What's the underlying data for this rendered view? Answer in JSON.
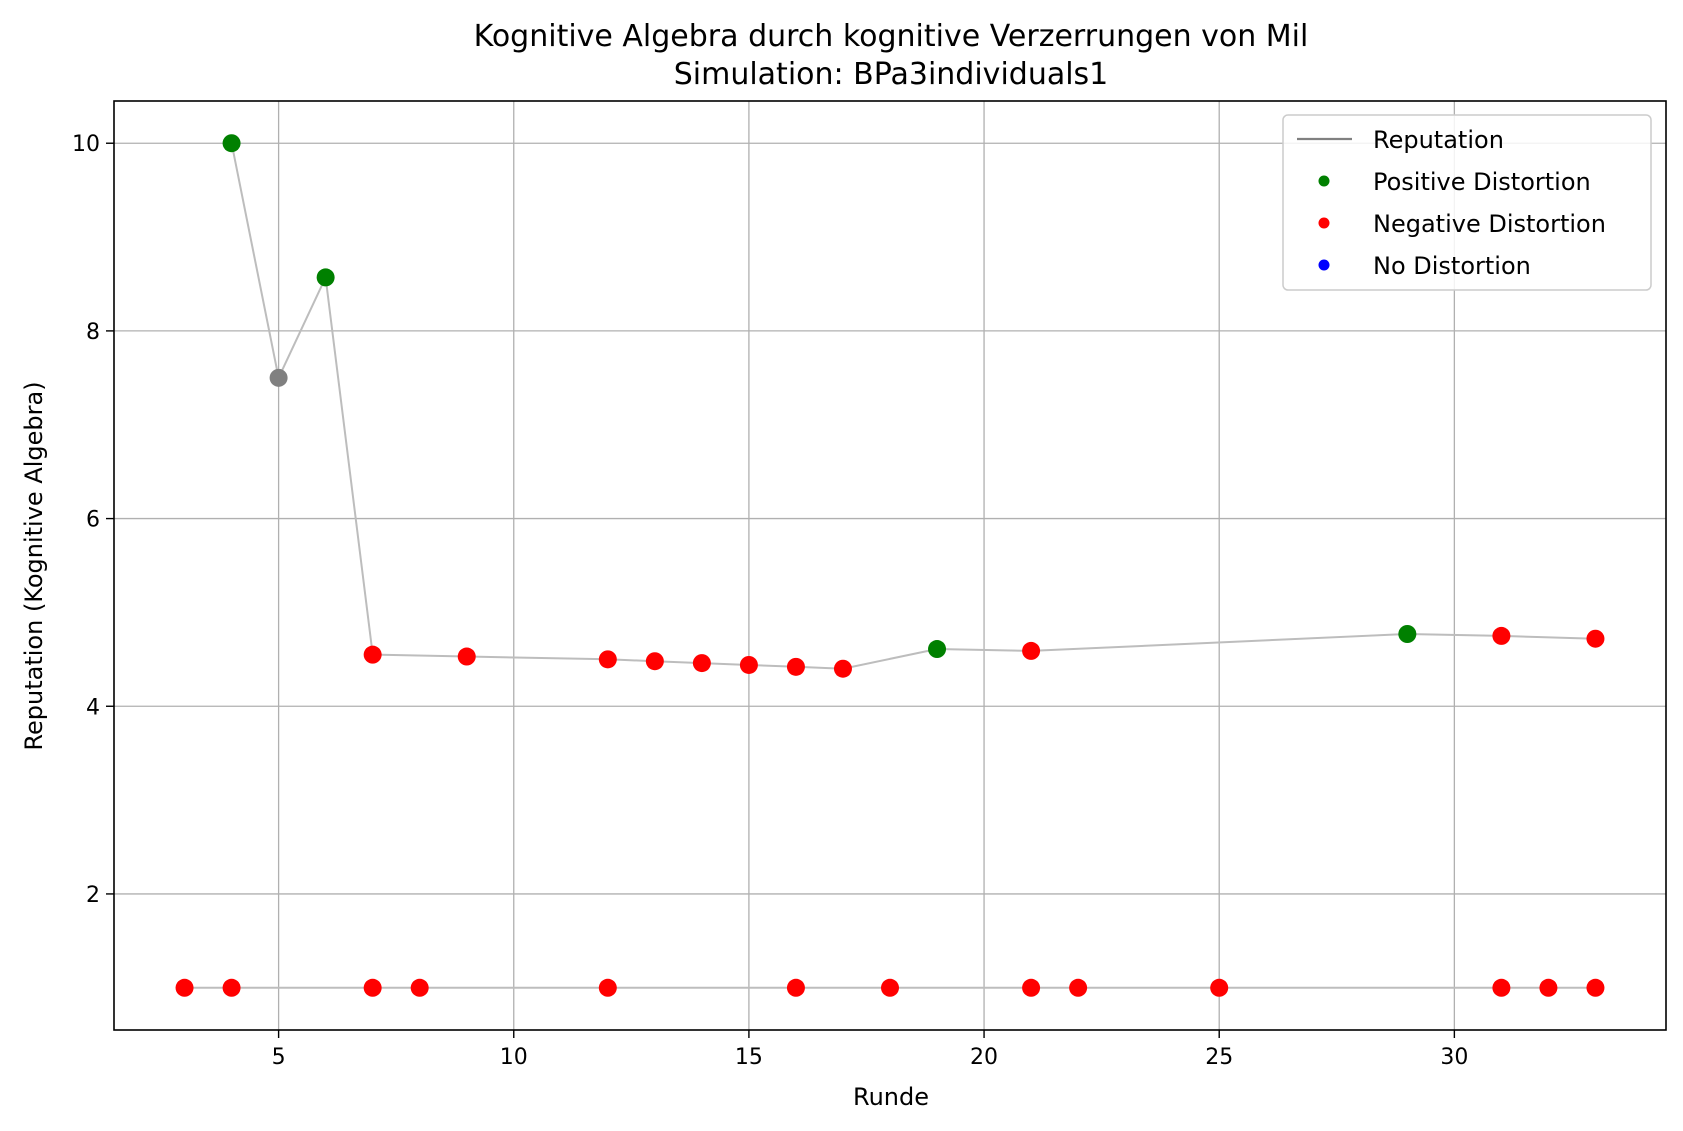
{
  "chart_data": {
    "type": "scatter",
    "title": "Kognitive Algebra durch kognitive Verzerrungen von Mil",
    "subtitle": "Simulation: BPa3individuals1",
    "xlabel": "Runde",
    "ylabel": "Reputation (Kognitive Algebra)",
    "xlim": [
      1.5,
      34.5
    ],
    "ylim": [
      0.55,
      10.45
    ],
    "xticks": [
      5,
      10,
      15,
      20,
      25,
      30
    ],
    "yticks": [
      2,
      4,
      6,
      8,
      10
    ],
    "grid": true,
    "legend_position": "top-right",
    "legend": [
      {
        "label": "Reputation",
        "kind": "line",
        "color": "#808080"
      },
      {
        "label": "Positive Distortion",
        "kind": "marker",
        "color": "#008000"
      },
      {
        "label": "Negative Distortion",
        "kind": "marker",
        "color": "#ff0000"
      },
      {
        "label": "No Distortion",
        "kind": "marker",
        "color": "#0000ff"
      }
    ],
    "colors": {
      "line": "#bdbdbd",
      "positive": "#008000",
      "negative": "#ff0000",
      "none": "#808080",
      "grid": "#b0b0b0"
    },
    "series": [
      {
        "points": [
          {
            "x": 4,
            "y": 10.0,
            "c": "positive"
          },
          {
            "x": 5,
            "y": 7.5,
            "c": "none"
          },
          {
            "x": 6,
            "y": 8.57,
            "c": "positive"
          },
          {
            "x": 7,
            "y": 4.55,
            "c": "negative"
          },
          {
            "x": 9,
            "y": 4.53,
            "c": "negative"
          },
          {
            "x": 12,
            "y": 4.5,
            "c": "negative"
          },
          {
            "x": 13,
            "y": 4.48,
            "c": "negative"
          },
          {
            "x": 14,
            "y": 4.46,
            "c": "negative"
          },
          {
            "x": 15,
            "y": 4.44,
            "c": "negative"
          },
          {
            "x": 16,
            "y": 4.42,
            "c": "negative"
          },
          {
            "x": 17,
            "y": 4.4,
            "c": "negative"
          },
          {
            "x": 19,
            "y": 4.61,
            "c": "positive"
          },
          {
            "x": 21,
            "y": 4.59,
            "c": "negative"
          },
          {
            "x": 29,
            "y": 4.77,
            "c": "positive"
          },
          {
            "x": 31,
            "y": 4.75,
            "c": "negative"
          },
          {
            "x": 33,
            "y": 4.72,
            "c": "negative"
          }
        ]
      },
      {
        "points": [
          {
            "x": 3,
            "y": 1.0,
            "c": "negative"
          },
          {
            "x": 4,
            "y": 1.0,
            "c": "negative"
          },
          {
            "x": 7,
            "y": 1.0,
            "c": "negative"
          },
          {
            "x": 8,
            "y": 1.0,
            "c": "negative"
          },
          {
            "x": 12,
            "y": 1.0,
            "c": "negative"
          },
          {
            "x": 16,
            "y": 1.0,
            "c": "negative"
          },
          {
            "x": 18,
            "y": 1.0,
            "c": "negative"
          },
          {
            "x": 21,
            "y": 1.0,
            "c": "negative"
          },
          {
            "x": 22,
            "y": 1.0,
            "c": "negative"
          },
          {
            "x": 25,
            "y": 1.0,
            "c": "negative"
          },
          {
            "x": 31,
            "y": 1.0,
            "c": "negative"
          },
          {
            "x": 32,
            "y": 1.0,
            "c": "negative"
          },
          {
            "x": 33,
            "y": 1.0,
            "c": "negative"
          }
        ]
      }
    ]
  }
}
